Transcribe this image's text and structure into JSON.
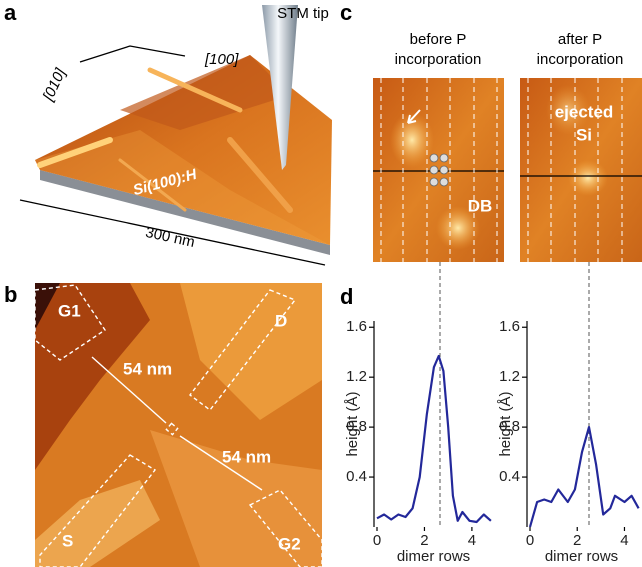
{
  "panel_labels": [
    "a",
    "b",
    "c",
    "d"
  ],
  "panel_a": {
    "tip_label": "STM tip",
    "direction_1": "[100]",
    "direction_2": "[010]",
    "surface_label": "Si(100):H",
    "scale_label": "300 nm"
  },
  "panel_b": {
    "electrodes": [
      "G1",
      "D",
      "S",
      "G2"
    ],
    "distances": [
      "54 nm",
      "54 nm"
    ]
  },
  "panel_c": {
    "images": [
      {
        "title_lines": [
          "before P",
          "incorporation"
        ],
        "labels": [
          "DB"
        ]
      },
      {
        "title_lines": [
          "after P",
          "incorporation"
        ],
        "labels": [
          "ejected",
          "Si"
        ]
      }
    ]
  },
  "chart_data": [
    {
      "type": "line",
      "x": [
        0,
        0.3,
        0.6,
        0.9,
        1.2,
        1.5,
        1.8,
        2.1,
        2.4,
        2.6,
        2.8,
        3.0,
        3.2,
        3.4,
        3.6,
        3.9,
        4.2,
        4.5,
        4.8
      ],
      "values": [
        0.07,
        0.1,
        0.06,
        0.1,
        0.08,
        0.15,
        0.4,
        0.9,
        1.28,
        1.37,
        1.25,
        0.8,
        0.25,
        0.05,
        0.12,
        0.05,
        0.04,
        0.1,
        0.05
      ],
      "color": "#23289a",
      "xlabel": "dimer rows",
      "ylabel": "height (Å)",
      "xlim": [
        0,
        5.1
      ],
      "ylim": [
        0,
        1.65
      ],
      "xticks": [
        0,
        2,
        4
      ],
      "yticks": [
        0.4,
        0.8,
        1.2,
        1.6
      ]
    },
    {
      "type": "line",
      "x": [
        0,
        0.3,
        0.6,
        0.9,
        1.2,
        1.6,
        1.9,
        2.2,
        2.5,
        2.8,
        3.1,
        3.4,
        3.6,
        4.0,
        4.3,
        4.6
      ],
      "values": [
        0.0,
        0.2,
        0.22,
        0.2,
        0.3,
        0.2,
        0.3,
        0.6,
        0.8,
        0.5,
        0.1,
        0.15,
        0.25,
        0.2,
        0.25,
        0.15
      ],
      "color": "#23289a",
      "xlabel": "dimer rows",
      "ylabel": "height (Å)",
      "xlim": [
        0,
        4.7
      ],
      "ylim": [
        0,
        1.65
      ],
      "xticks": [
        0,
        2,
        4
      ],
      "yticks": [
        0.4,
        0.8,
        1.2,
        1.6
      ]
    }
  ]
}
